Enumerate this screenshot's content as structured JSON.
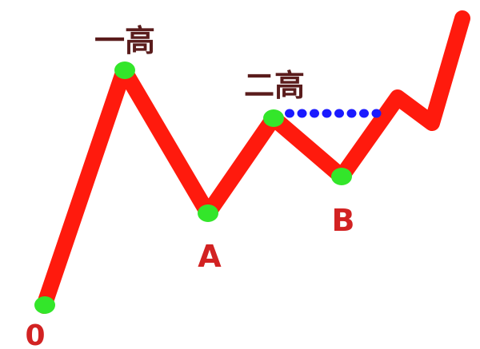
{
  "diagram": {
    "labels": {
      "origin": "0",
      "first_high": "一高",
      "point_a": "A",
      "second_high": "二高",
      "point_b": "B"
    },
    "colors": {
      "price_line": "#ff1a0d",
      "pivot_marker": "#33e62a",
      "neckline": "#1a1aff",
      "label_dark": "#5a1c1c",
      "label_red": "#d22222"
    }
  }
}
